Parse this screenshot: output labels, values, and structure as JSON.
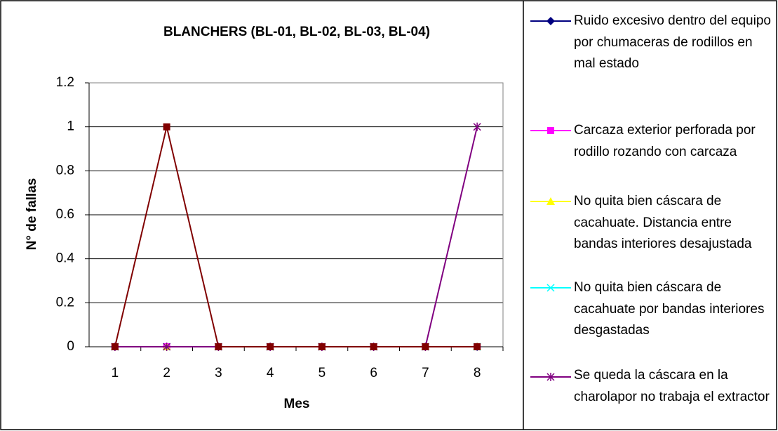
{
  "chart_data": {
    "type": "line",
    "title": "BLANCHERS (BL-01, BL-02, BL-03, BL-04)",
    "x_label": "Mes",
    "y_label": "N° de fallas",
    "categories": [
      "1",
      "2",
      "3",
      "4",
      "5",
      "6",
      "7",
      "8"
    ],
    "ylim": [
      0,
      1.2
    ],
    "yticks": [
      0,
      0.2,
      0.4,
      0.6,
      0.8,
      1,
      1.2
    ],
    "grid": true,
    "series": [
      {
        "name": "Ruido excesivo dentro del equipo por chumaceras de rodillos en mal estado",
        "color": "#000080",
        "marker": "diamond",
        "values": [
          0,
          0,
          0,
          0,
          0,
          0,
          0,
          0
        ]
      },
      {
        "name": "Carcaza exterior perforada por rodillo rozando con carcaza",
        "color": "#ff00ff",
        "marker": "square",
        "values": [
          0,
          0,
          0,
          0,
          0,
          0,
          0,
          0
        ]
      },
      {
        "name": "No quita bien cáscara de cacahuate. Distancia entre bandas interiores desajustada",
        "color": "#ffff00",
        "marker": "triangle",
        "values": [
          0,
          0,
          0,
          0,
          0,
          0,
          0,
          0
        ]
      },
      {
        "name": "No quita bien cáscara de cacahuate por bandas interiores desgastadas",
        "color": "#00ffff",
        "marker": "x",
        "values": [
          0,
          0,
          0,
          0,
          0,
          0,
          0,
          0
        ]
      },
      {
        "name": "Se queda la cáscara en la charolapor no trabaja el extractor",
        "color": "#800080",
        "marker": "star",
        "values": [
          0,
          0,
          0,
          0,
          0,
          0,
          0,
          1
        ]
      },
      {
        "color": "#800000",
        "marker": "square",
        "values": [
          0,
          1,
          0,
          0,
          0,
          0,
          0,
          0
        ]
      }
    ]
  }
}
